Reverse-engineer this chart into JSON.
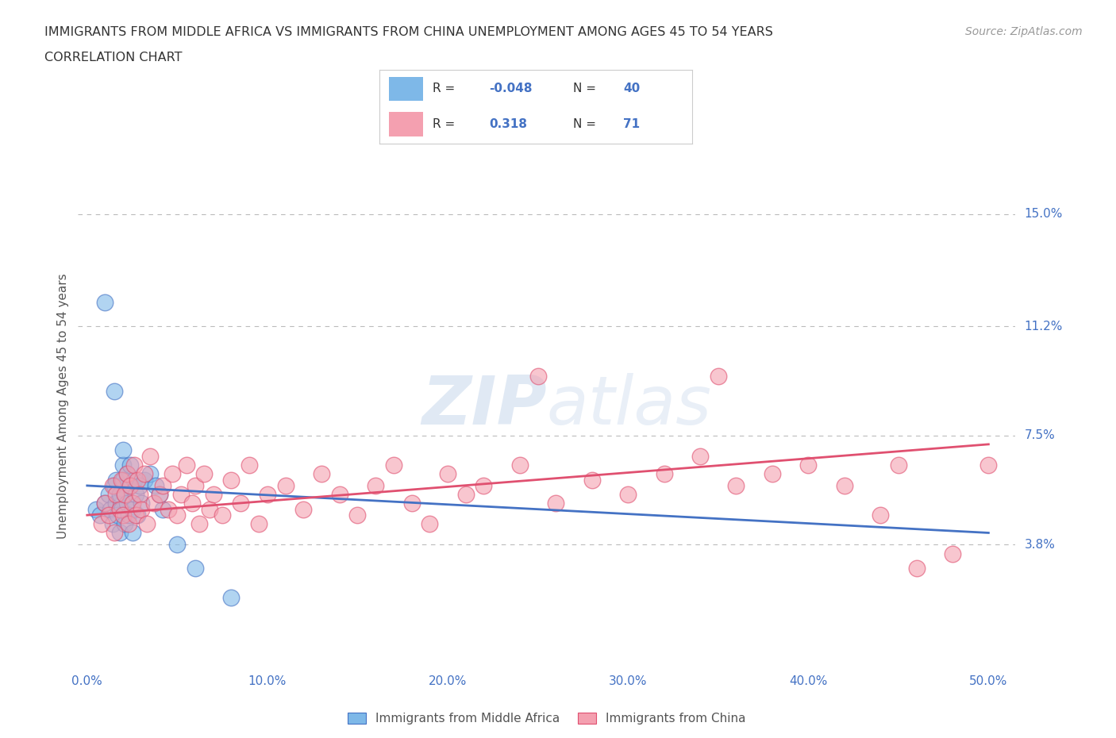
{
  "title_line1": "IMMIGRANTS FROM MIDDLE AFRICA VS IMMIGRANTS FROM CHINA UNEMPLOYMENT AMONG AGES 45 TO 54 YEARS",
  "title_line2": "CORRELATION CHART",
  "source": "Source: ZipAtlas.com",
  "ylabel": "Unemployment Among Ages 45 to 54 years",
  "xlim": [
    -0.005,
    0.515
  ],
  "ylim": [
    -0.005,
    0.175
  ],
  "yticks": [
    0.038,
    0.075,
    0.112,
    0.15
  ],
  "ytick_labels": [
    "3.8%",
    "7.5%",
    "11.2%",
    "15.0%"
  ],
  "xticks": [
    0.0,
    0.1,
    0.2,
    0.3,
    0.4,
    0.5
  ],
  "xtick_labels": [
    "0.0%",
    "10.0%",
    "20.0%",
    "30.0%",
    "40.0%",
    "50.0%"
  ],
  "color_blue_scatter": "#7EB8E8",
  "color_pink_scatter": "#F4A0B0",
  "color_blue_line": "#4472C4",
  "color_pink_line": "#E05070",
  "color_tick_label": "#4472C4",
  "legend_label_blue": "Immigrants from Middle Africa",
  "legend_label_pink": "Immigrants from China",
  "blue_points_x": [
    0.005,
    0.007,
    0.01,
    0.012,
    0.013,
    0.014,
    0.015,
    0.016,
    0.016,
    0.017,
    0.018,
    0.018,
    0.019,
    0.02,
    0.02,
    0.02,
    0.021,
    0.021,
    0.022,
    0.022,
    0.023,
    0.024,
    0.024,
    0.025,
    0.025,
    0.026,
    0.027,
    0.028,
    0.029,
    0.03,
    0.032,
    0.035,
    0.038,
    0.04,
    0.042,
    0.05,
    0.06,
    0.08,
    0.01,
    0.015
  ],
  "blue_points_y": [
    0.05,
    0.048,
    0.052,
    0.055,
    0.05,
    0.045,
    0.058,
    0.052,
    0.06,
    0.048,
    0.042,
    0.055,
    0.05,
    0.06,
    0.065,
    0.07,
    0.045,
    0.055,
    0.052,
    0.062,
    0.048,
    0.058,
    0.065,
    0.05,
    0.042,
    0.06,
    0.055,
    0.048,
    0.058,
    0.052,
    0.06,
    0.062,
    0.058,
    0.055,
    0.05,
    0.038,
    0.03,
    0.02,
    0.12,
    0.09
  ],
  "pink_points_x": [
    0.008,
    0.01,
    0.012,
    0.014,
    0.015,
    0.016,
    0.018,
    0.019,
    0.02,
    0.021,
    0.022,
    0.023,
    0.024,
    0.025,
    0.026,
    0.027,
    0.028,
    0.029,
    0.03,
    0.032,
    0.033,
    0.035,
    0.037,
    0.04,
    0.042,
    0.045,
    0.047,
    0.05,
    0.052,
    0.055,
    0.058,
    0.06,
    0.062,
    0.065,
    0.068,
    0.07,
    0.075,
    0.08,
    0.085,
    0.09,
    0.095,
    0.1,
    0.11,
    0.12,
    0.13,
    0.14,
    0.15,
    0.16,
    0.17,
    0.18,
    0.19,
    0.2,
    0.21,
    0.22,
    0.24,
    0.26,
    0.28,
    0.3,
    0.32,
    0.34,
    0.36,
    0.38,
    0.4,
    0.42,
    0.44,
    0.46,
    0.48,
    0.5,
    0.25,
    0.35,
    0.45
  ],
  "pink_points_y": [
    0.045,
    0.052,
    0.048,
    0.058,
    0.042,
    0.055,
    0.05,
    0.06,
    0.048,
    0.055,
    0.062,
    0.045,
    0.058,
    0.052,
    0.065,
    0.048,
    0.06,
    0.055,
    0.05,
    0.062,
    0.045,
    0.068,
    0.052,
    0.055,
    0.058,
    0.05,
    0.062,
    0.048,
    0.055,
    0.065,
    0.052,
    0.058,
    0.045,
    0.062,
    0.05,
    0.055,
    0.048,
    0.06,
    0.052,
    0.065,
    0.045,
    0.055,
    0.058,
    0.05,
    0.062,
    0.055,
    0.048,
    0.058,
    0.065,
    0.052,
    0.045,
    0.062,
    0.055,
    0.058,
    0.065,
    0.052,
    0.06,
    0.055,
    0.062,
    0.068,
    0.058,
    0.062,
    0.065,
    0.058,
    0.048,
    0.03,
    0.035,
    0.065,
    0.095,
    0.095,
    0.065
  ],
  "blue_line_x0": 0.0,
  "blue_line_x1": 0.5,
  "blue_line_y0": 0.058,
  "blue_line_y1": 0.042,
  "pink_line_x0": 0.0,
  "pink_line_x1": 0.5,
  "pink_line_y0": 0.048,
  "pink_line_y1": 0.072
}
